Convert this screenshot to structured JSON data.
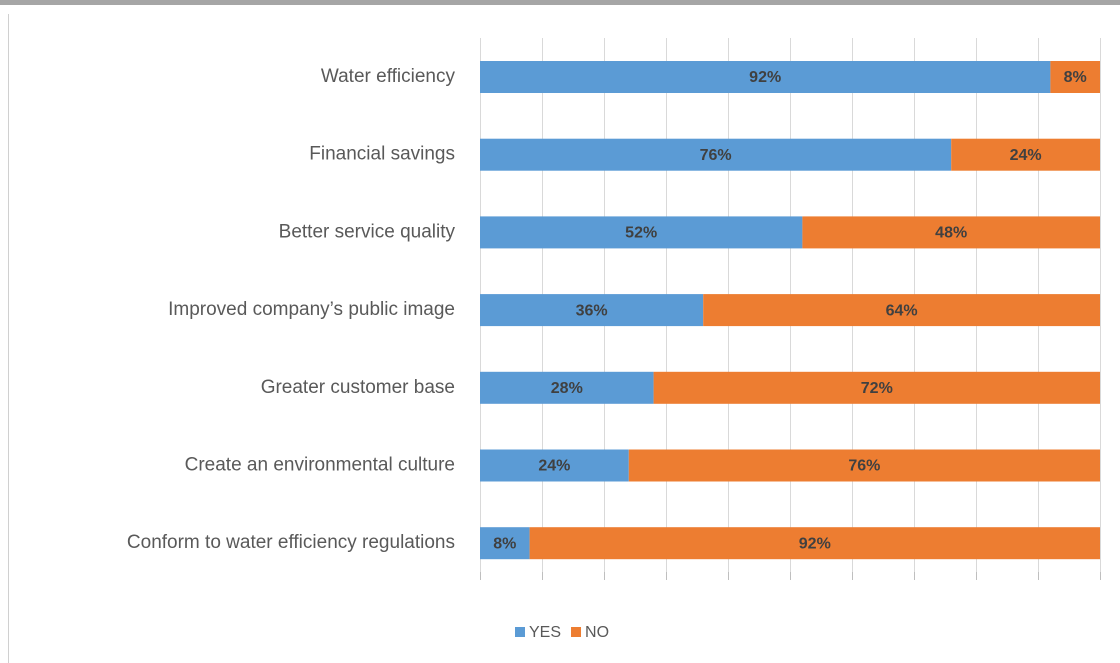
{
  "chart_data": {
    "type": "stacked-bar-horizontal",
    "categories": [
      "Water efficiency",
      "Financial savings",
      "Better service quality",
      "Improved company’s public image",
      "Greater customer base",
      "Create an environmental culture",
      "Conform to water efficiency regulations"
    ],
    "series": [
      {
        "name": "YES",
        "color": "#5b9bd5",
        "values": [
          92,
          76,
          52,
          36,
          28,
          24,
          8
        ],
        "value_labels": [
          "92%",
          "76%",
          "52%",
          "36%",
          "28%",
          "24%",
          "8%"
        ]
      },
      {
        "name": "NO",
        "color": "#ed7d31",
        "values": [
          8,
          24,
          48,
          64,
          72,
          76,
          92
        ],
        "value_labels": [
          "8%",
          "24%",
          "48%",
          "64%",
          "72%",
          "76%",
          "92%"
        ]
      }
    ],
    "xlim": [
      0,
      100
    ],
    "xticks": [
      0,
      10,
      20,
      30,
      40,
      50,
      60,
      70,
      80,
      90,
      100
    ],
    "grid": true,
    "legend": "bottom"
  }
}
